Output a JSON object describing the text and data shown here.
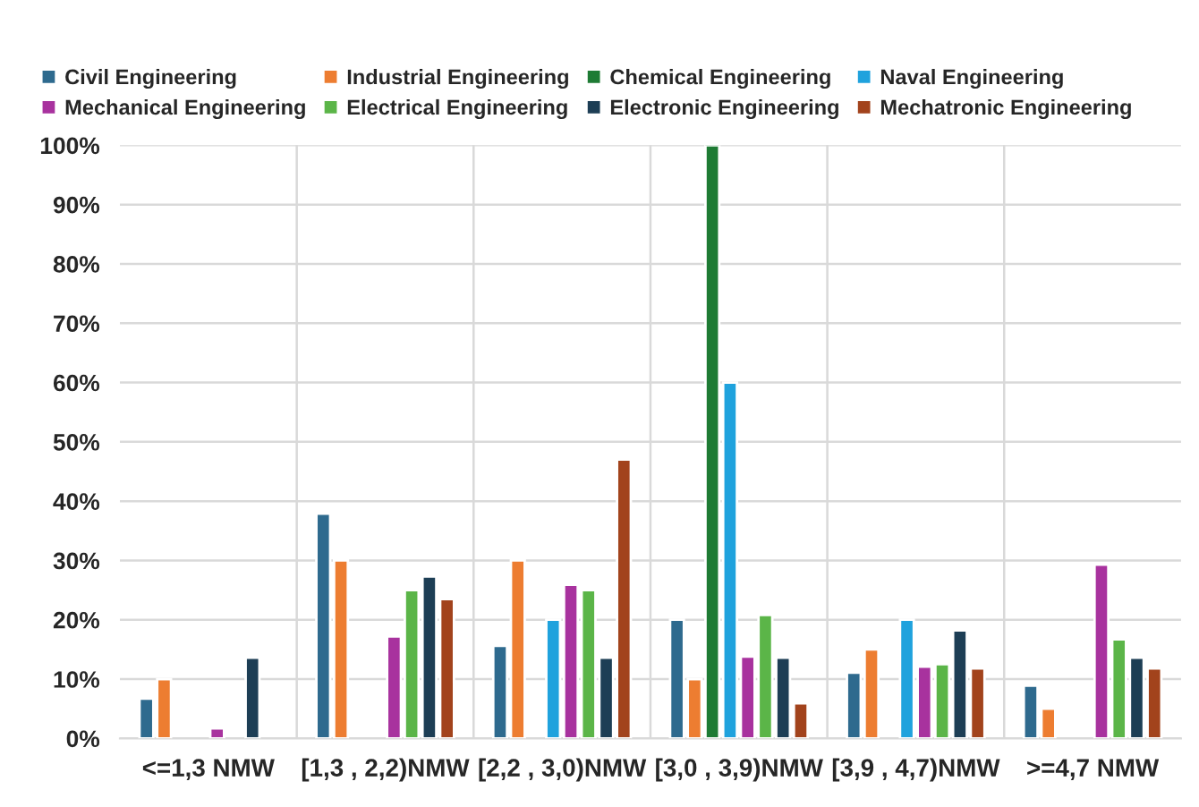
{
  "chart_data": {
    "type": "bar",
    "categories": [
      "<=1,3 NMW",
      "[1,3 , 2,2)NMW",
      "[2,2 , 3,0)NMW",
      "[3,0 , 3,9)NMW",
      "[3,9 , 4,7)NMW",
      ">=4,7 NMW"
    ],
    "series": [
      {
        "name": "Civil Engineering",
        "color": "#2e6a8e",
        "values": [
          6.7,
          37.9,
          15.6,
          20,
          11.1,
          8.9
        ]
      },
      {
        "name": "Industrial Engineering",
        "color": "#ed7d31",
        "values": [
          10,
          30,
          30,
          10,
          15,
          5
        ]
      },
      {
        "name": "Chemical Engineering",
        "color": "#1e7b34",
        "values": [
          null,
          null,
          null,
          100,
          null,
          null
        ]
      },
      {
        "name": "Naval Engineering",
        "color": "#1fa2dd",
        "values": [
          null,
          null,
          20,
          60,
          20,
          null
        ]
      },
      {
        "name": "Mechanical Engineering",
        "color": "#a8329e",
        "values": [
          1.7,
          17.2,
          25.9,
          13.8,
          12.1,
          29.3
        ]
      },
      {
        "name": "Electrical Engineering",
        "color": "#5bb548",
        "values": [
          null,
          25,
          25,
          20.8,
          12.5,
          16.7
        ]
      },
      {
        "name": "Electronic Engineering",
        "color": "#1d3e55",
        "values": [
          13.6,
          27.3,
          13.6,
          13.6,
          18.2,
          13.6
        ]
      },
      {
        "name": "Mechatronic Engineering",
        "color": "#a2431c",
        "values": [
          null,
          23.5,
          47,
          5.9,
          11.8,
          11.8
        ]
      }
    ],
    "ylim": [
      0,
      100
    ],
    "yticks": [
      {
        "value": 0,
        "label": "0%"
      },
      {
        "value": 10,
        "label": "10%"
      },
      {
        "value": 20,
        "label": "20%"
      },
      {
        "value": 30,
        "label": "30%"
      },
      {
        "value": 40,
        "label": "40%"
      },
      {
        "value": 50,
        "label": "50%"
      },
      {
        "value": 60,
        "label": "60%"
      },
      {
        "value": 70,
        "label": "70%"
      },
      {
        "value": 80,
        "label": "80%"
      },
      {
        "value": 90,
        "label": "90%"
      },
      {
        "value": 100,
        "label": "100%"
      }
    ],
    "grid": true,
    "legend": "top"
  }
}
